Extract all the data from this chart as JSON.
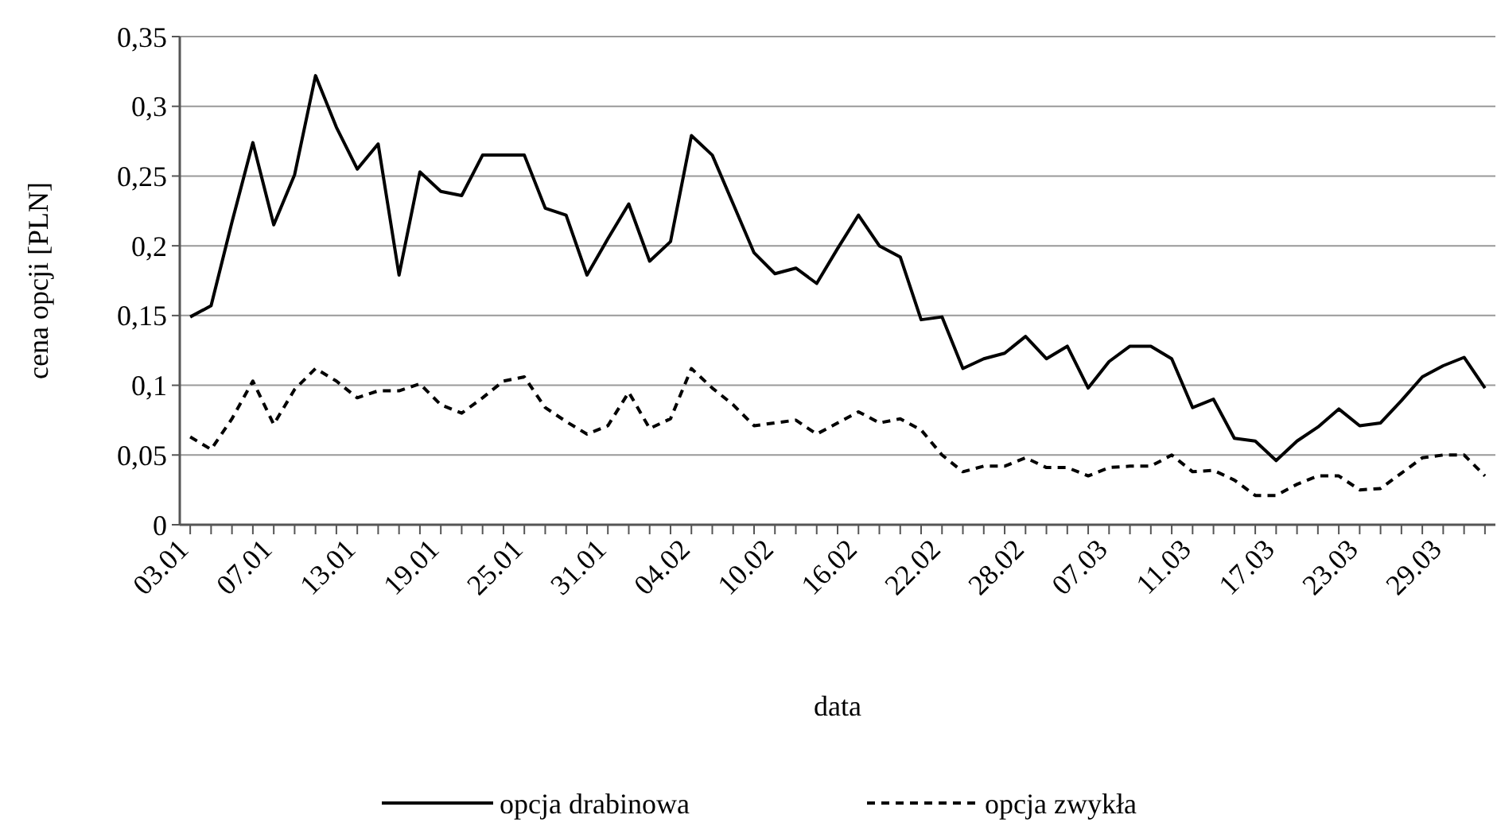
{
  "chart_data": {
    "type": "line",
    "xlabel": "data",
    "ylabel": "cena opcji [PLN]",
    "categories": [
      "03.01",
      null,
      null,
      null,
      "07.01",
      null,
      null,
      null,
      "13.01",
      null,
      null,
      null,
      "19.01",
      null,
      null,
      null,
      "25.01",
      null,
      null,
      null,
      "31.01",
      null,
      null,
      null,
      "04.02",
      null,
      null,
      null,
      "10.02",
      null,
      null,
      null,
      "16.02",
      null,
      null,
      null,
      "22.02",
      null,
      null,
      null,
      "28.02",
      null,
      null,
      null,
      "07.03",
      null,
      null,
      null,
      "11.03",
      null,
      null,
      null,
      "17.03",
      null,
      null,
      null,
      "23.03",
      null,
      null,
      null,
      "29.03",
      null,
      null
    ],
    "series": [
      {
        "name": "opcja drabinowa",
        "color": "#000000",
        "line_style": "solid",
        "values": [
          0.149,
          0.157,
          0.217,
          0.274,
          0.215,
          0.251,
          0.322,
          0.285,
          0.255,
          0.273,
          0.179,
          0.253,
          0.239,
          0.236,
          0.265,
          0.265,
          0.265,
          0.227,
          0.222,
          0.179,
          0.205,
          0.23,
          0.189,
          0.203,
          0.279,
          0.265,
          0.23,
          0.195,
          0.18,
          0.184,
          0.173,
          0.198,
          0.222,
          0.2,
          0.192,
          0.147,
          0.149,
          0.112,
          0.119,
          0.123,
          0.135,
          0.119,
          0.128,
          0.098,
          0.117,
          0.128,
          0.128,
          0.119,
          0.084,
          0.09,
          0.062,
          0.06,
          0.046,
          0.06,
          0.07,
          0.083,
          0.071,
          0.073,
          0.089,
          0.106,
          0.114,
          0.12,
          0.098
        ]
      },
      {
        "name": "opcja zwykła",
        "color": "#000000",
        "line_style": "dashed",
        "values": [
          0.063,
          0.054,
          0.076,
          0.103,
          0.072,
          0.097,
          0.112,
          0.103,
          0.091,
          0.096,
          0.096,
          0.101,
          0.086,
          0.08,
          0.091,
          0.103,
          0.106,
          0.084,
          0.074,
          0.065,
          0.071,
          0.095,
          0.069,
          0.076,
          0.112,
          0.098,
          0.086,
          0.071,
          0.073,
          0.075,
          0.065,
          0.073,
          0.081,
          0.073,
          0.076,
          0.068,
          0.05,
          0.038,
          0.042,
          0.042,
          0.048,
          0.041,
          0.041,
          0.035,
          0.041,
          0.042,
          0.042,
          0.05,
          0.038,
          0.039,
          0.032,
          0.021,
          0.021,
          0.029,
          0.035,
          0.035,
          0.025,
          0.026,
          0.037,
          0.048,
          0.05,
          0.05,
          0.035
        ]
      }
    ],
    "ylim": [
      0,
      0.35
    ],
    "yticks": [
      0,
      {
        "value": 0.05,
        "label": "0,05"
      },
      {
        "value": 0.1,
        "label": "0,1"
      },
      {
        "value": 0.15,
        "label": "0,15"
      },
      {
        "value": 0.2,
        "label": "0,2"
      },
      {
        "value": 0.25,
        "label": "0,25"
      },
      {
        "value": 0.3,
        "label": "0,3"
      },
      {
        "value": 0.35,
        "label": "0,35"
      }
    ],
    "grid": "y",
    "legend": "bottom",
    "marker": "none"
  }
}
